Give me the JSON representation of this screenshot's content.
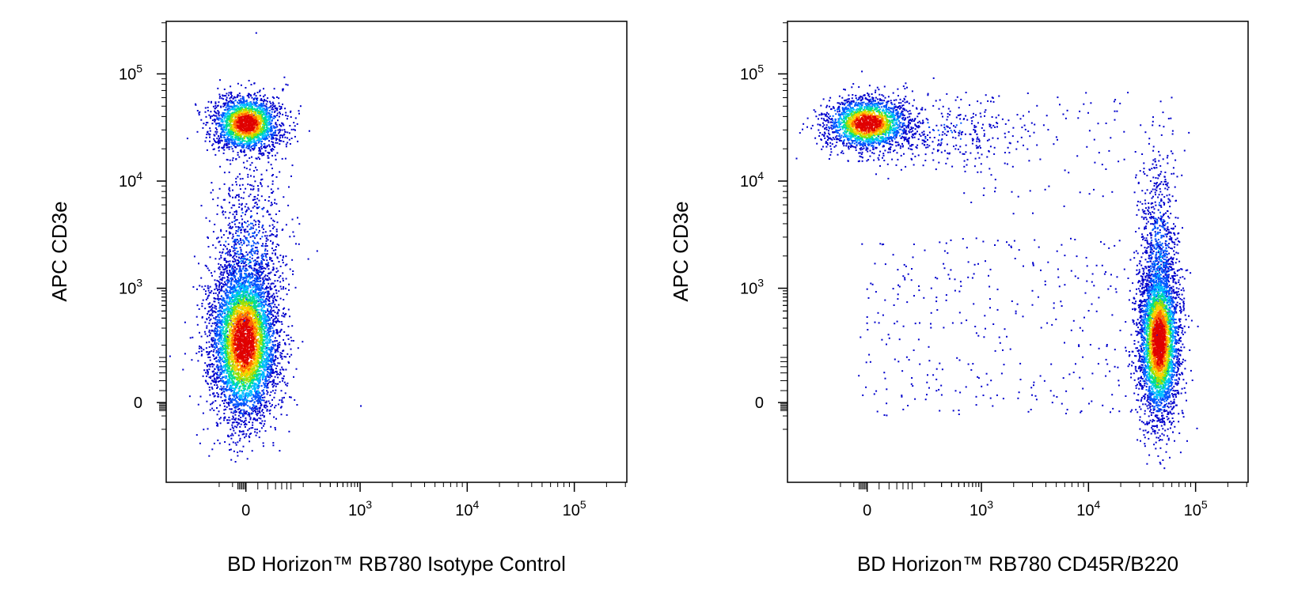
{
  "chart_data": [
    {
      "type": "scatter",
      "subtype": "flow-cytometry-pseudocolor-dot-plot",
      "xlabel": "BD Horizon™ RB780 Isotype Control",
      "ylabel": "APC CD3e",
      "x_scale": "biexponential",
      "y_scale": "biexponential",
      "x_ticks": [
        {
          "value": 0,
          "base": "0",
          "exp": ""
        },
        {
          "value": 1000,
          "base": "10",
          "exp": "3"
        },
        {
          "value": 10000,
          "base": "10",
          "exp": "4"
        },
        {
          "value": 100000,
          "base": "10",
          "exp": "5"
        }
      ],
      "y_ticks": [
        {
          "value": 0,
          "base": "0",
          "exp": ""
        },
        {
          "value": 1000,
          "base": "10",
          "exp": "3"
        },
        {
          "value": 10000,
          "base": "10",
          "exp": "4"
        },
        {
          "value": 100000,
          "base": "10",
          "exp": "5"
        }
      ],
      "xlim": [
        -300,
        200000
      ],
      "ylim": [
        -300,
        200000
      ],
      "populations": [
        {
          "name": "",
          "x_center": 0,
          "y_center": 35000,
          "approx_events": 3000
        },
        {
          "name": "",
          "x_center": 0,
          "y_center": 120,
          "approx_events": 9000
        },
        {
          "name": "",
          "x_center": 0,
          "y_center": 1500,
          "approx_events": 900
        }
      ],
      "colormap": [
        "#0000cc",
        "#0057ff",
        "#00c0ff",
        "#00e08a",
        "#9be000",
        "#ffd000",
        "#ff6a00",
        "#e00000"
      ],
      "grid": false,
      "legend": "none"
    },
    {
      "type": "scatter",
      "subtype": "flow-cytometry-pseudocolor-dot-plot",
      "xlabel": "BD Horizon™ RB780 CD45R/B220",
      "ylabel": "APC CD3e",
      "x_scale": "biexponential",
      "y_scale": "biexponential",
      "x_ticks": [
        {
          "value": 0,
          "base": "0",
          "exp": ""
        },
        {
          "value": 1000,
          "base": "10",
          "exp": "3"
        },
        {
          "value": 10000,
          "base": "10",
          "exp": "4"
        },
        {
          "value": 100000,
          "base": "10",
          "exp": "5"
        }
      ],
      "y_ticks": [
        {
          "value": 0,
          "base": "0",
          "exp": ""
        },
        {
          "value": 1000,
          "base": "10",
          "exp": "3"
        },
        {
          "value": 10000,
          "base": "10",
          "exp": "4"
        },
        {
          "value": 100000,
          "base": "10",
          "exp": "5"
        }
      ],
      "xlim": [
        -300,
        200000
      ],
      "ylim": [
        -300,
        200000
      ],
      "populations": [
        {
          "name": "",
          "x_center": 0,
          "y_center": 35000,
          "approx_events": 3000
        },
        {
          "name": "",
          "x_center": 45000,
          "y_center": 120,
          "approx_events": 5000
        },
        {
          "name": "",
          "x_center": 3000,
          "y_center": 300,
          "approx_events": 500
        }
      ],
      "colormap": [
        "#0000cc",
        "#0057ff",
        "#00c0ff",
        "#00e08a",
        "#9be000",
        "#ffd000",
        "#ff6a00",
        "#e00000"
      ],
      "grid": false,
      "legend": "none"
    }
  ]
}
